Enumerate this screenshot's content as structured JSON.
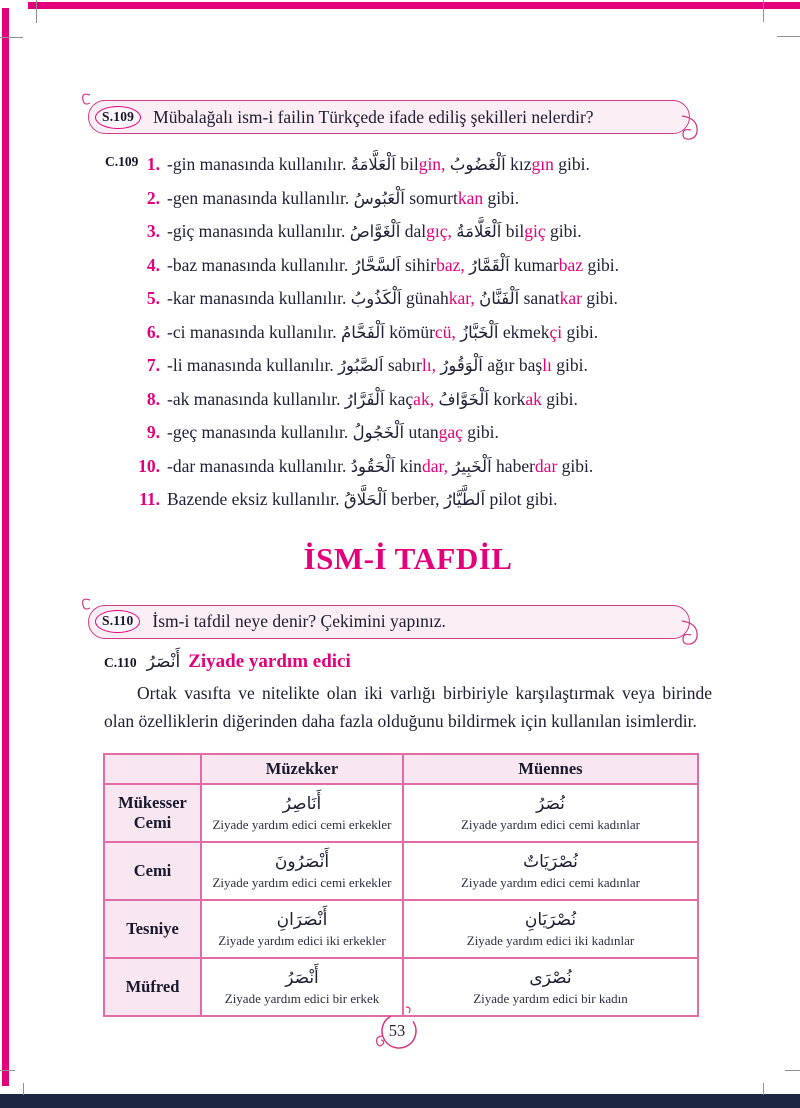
{
  "colors": {
    "accent": "#e2017b",
    "box_border": "#cd3d88",
    "box_fill": "#fbeef5",
    "table_border": "#e26ca6",
    "cell_fill": "#f8e7f1",
    "navy_bar": "#1c2743"
  },
  "q109": {
    "badge": "S.109",
    "question": "Mübalağalı ism-i failin Türkçede ifade ediliş şekilleri nelerdir?"
  },
  "c109": {
    "label": "C.109",
    "items": [
      {
        "num": "1.",
        "runs": [
          {
            "t": "-gin manasında kullanılır. "
          },
          {
            "t": "اَلْعَلَّامَةُ",
            "s": "ar"
          },
          {
            "t": " bil"
          },
          {
            "t": "gin,",
            "s": "hl"
          },
          {
            "t": " "
          },
          {
            "t": "اَلْغَضُوبُ",
            "s": "ar"
          },
          {
            "t": " kız"
          },
          {
            "t": "gın",
            "s": "hl"
          },
          {
            "t": " gibi."
          }
        ]
      },
      {
        "num": "2.",
        "runs": [
          {
            "t": "-gen manasında kullanılır. "
          },
          {
            "t": "اَلْعَبُوسُ",
            "s": "ar"
          },
          {
            "t": " somurt"
          },
          {
            "t": "kan",
            "s": "hl"
          },
          {
            "t": " gibi."
          }
        ]
      },
      {
        "num": "3.",
        "runs": [
          {
            "t": "-giç manasında kullanılır. "
          },
          {
            "t": "اَلْغَوَّاصُ",
            "s": "ar"
          },
          {
            "t": " dal"
          },
          {
            "t": "gıç,",
            "s": "hl"
          },
          {
            "t": " "
          },
          {
            "t": "اَلْعَلَّامَةُ",
            "s": "ar"
          },
          {
            "t": " bil"
          },
          {
            "t": "giç",
            "s": "hl"
          },
          {
            "t": " gibi."
          }
        ]
      },
      {
        "num": "4.",
        "runs": [
          {
            "t": "-baz manasında kullanılır. "
          },
          {
            "t": "اَلسَّحَّارُ",
            "s": "ar"
          },
          {
            "t": " sihir"
          },
          {
            "t": "baz,",
            "s": "hl"
          },
          {
            "t": " "
          },
          {
            "t": "اَلْقَمَّارُ",
            "s": "ar"
          },
          {
            "t": " kumar"
          },
          {
            "t": "baz",
            "s": "hl"
          },
          {
            "t": " gibi."
          }
        ]
      },
      {
        "num": "5.",
        "runs": [
          {
            "t": "-kar manasında kullanılır. "
          },
          {
            "t": "اَلْكَذُوبُ",
            "s": "ar"
          },
          {
            "t": " günah"
          },
          {
            "t": "kar,",
            "s": "hl"
          },
          {
            "t": " "
          },
          {
            "t": "اَلْفَنَّانُ",
            "s": "ar"
          },
          {
            "t": " sanat"
          },
          {
            "t": "kar",
            "s": "hl"
          },
          {
            "t": " gibi."
          }
        ]
      },
      {
        "num": "6.",
        "runs": [
          {
            "t": "-ci manasında kullanılır. "
          },
          {
            "t": "اَلْفَحَّامُ",
            "s": "ar"
          },
          {
            "t": " kömür"
          },
          {
            "t": "cü,",
            "s": "hl"
          },
          {
            "t": " "
          },
          {
            "t": "اَلْخَبَّازُ",
            "s": "ar"
          },
          {
            "t": " ekmek"
          },
          {
            "t": "çi",
            "s": "hl"
          },
          {
            "t": " gibi."
          }
        ]
      },
      {
        "num": "7.",
        "runs": [
          {
            "t": "-li manasında kullanılır. "
          },
          {
            "t": "اَلصَّبُورُ",
            "s": "ar"
          },
          {
            "t": " sabır"
          },
          {
            "t": "lı,",
            "s": "hl"
          },
          {
            "t": " "
          },
          {
            "t": "اَلْوَقُورُ",
            "s": "ar"
          },
          {
            "t": " ağır baş"
          },
          {
            "t": "lı",
            "s": "hl"
          },
          {
            "t": " gibi."
          }
        ]
      },
      {
        "num": "8.",
        "runs": [
          {
            "t": "-ak manasında kullanılır. "
          },
          {
            "t": "اَلْفَرَّارُ",
            "s": "ar"
          },
          {
            "t": " kaç"
          },
          {
            "t": "ak,",
            "s": "hl"
          },
          {
            "t": " "
          },
          {
            "t": "اَلْخَوَّافُ",
            "s": "ar"
          },
          {
            "t": " kork"
          },
          {
            "t": "ak",
            "s": "hl"
          },
          {
            "t": " gibi."
          }
        ]
      },
      {
        "num": "9.",
        "runs": [
          {
            "t": "-geç manasında kullanılır. "
          },
          {
            "t": "اَلْخَجُولُ",
            "s": "ar"
          },
          {
            "t": " utan"
          },
          {
            "t": "gaç",
            "s": "hl"
          },
          {
            "t": " gibi."
          }
        ]
      },
      {
        "num": "10.",
        "runs": [
          {
            "t": "-dar manasında kullanılır. "
          },
          {
            "t": "اَلْحَقُودُ",
            "s": "ar"
          },
          {
            "t": " kin"
          },
          {
            "t": "dar,",
            "s": "hl"
          },
          {
            "t": " "
          },
          {
            "t": "اَلْخَبِيرُ",
            "s": "ar"
          },
          {
            "t": " haber"
          },
          {
            "t": "dar",
            "s": "hl"
          },
          {
            "t": " gibi."
          }
        ]
      },
      {
        "num": "11.",
        "runs": [
          {
            "t": "Bazende eksiz kullanılır. "
          },
          {
            "t": "اَلْحَلَّاقُ",
            "s": "ar"
          },
          {
            "t": " berber, "
          },
          {
            "t": "اَلطَّيَّارُ",
            "s": "ar"
          },
          {
            "t": " pilot gibi."
          }
        ]
      }
    ]
  },
  "heading": "İSM-İ TAFDİL",
  "q110": {
    "badge": "S.110",
    "question": "İsm-i tafdil neye denir? Çekimini yapınız."
  },
  "c110": {
    "label": "C.110",
    "arabic": "أَنْصَرُ",
    "title": "Ziyade yardım edici"
  },
  "paragraph": "Ortak vasıfta ve nitelikte olan iki varlığı birbiriyle karşılaştırmak veya birinde olan özelliklerin diğerinden daha fazla olduğunu bildirmek için kullanılan isimlerdir.",
  "table": {
    "headers": [
      "",
      "Müzekker",
      "Müennes"
    ],
    "rows": [
      {
        "label": "Mükesser\nCemi",
        "cells": [
          {
            "arabic": "أَنَاصِرُ",
            "caption": "Ziyade yardım edici cemi erkekler"
          },
          {
            "arabic": "نُصَرُ",
            "caption": "Ziyade yardım edici cemi kadınlar"
          }
        ]
      },
      {
        "label": "Cemi",
        "cells": [
          {
            "arabic": "أَنْصَرُونَ",
            "caption": "Ziyade yardım edici cemi erkekler"
          },
          {
            "arabic": "نُصْرَيَاتٌ",
            "caption": "Ziyade yardım edici cemi kadınlar"
          }
        ]
      },
      {
        "label": "Tesniye",
        "cells": [
          {
            "arabic": "أَنْصَرَانِ",
            "caption": "Ziyade yardım edici iki erkekler"
          },
          {
            "arabic": "نُصْرَيَانِ",
            "caption": "Ziyade yardım edici iki kadınlar"
          }
        ]
      },
      {
        "label": "Müfred",
        "cells": [
          {
            "arabic": "أَنْصَرُ",
            "caption": "Ziyade yardım edici bir erkek"
          },
          {
            "arabic": "نُصْرَى",
            "caption": "Ziyade yardım edici bir kadın"
          }
        ]
      }
    ]
  },
  "page": {
    "number": "53"
  }
}
